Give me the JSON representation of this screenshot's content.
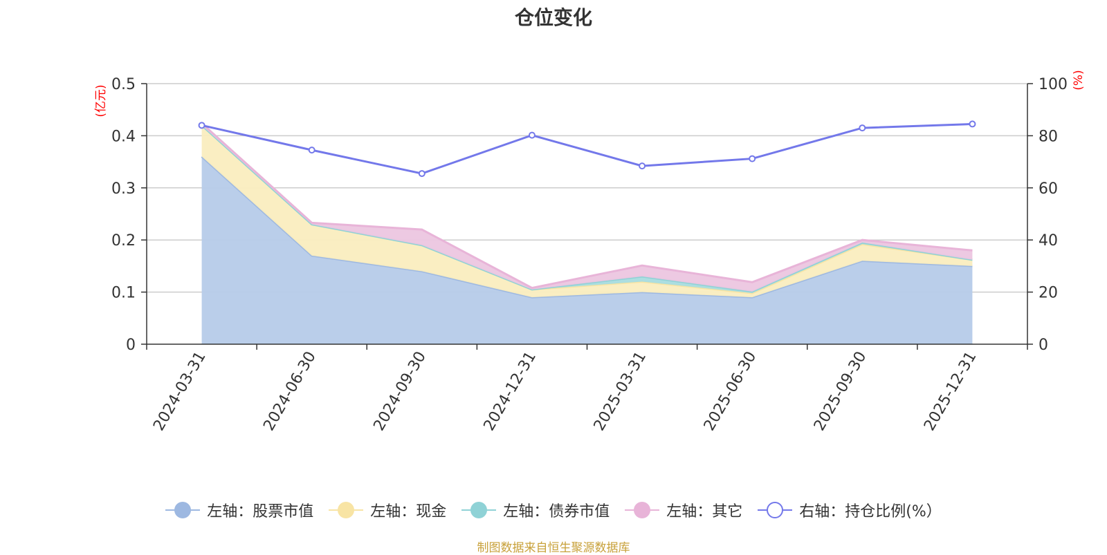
{
  "title": "仓位变化",
  "source_note": "制图数据来自恒生聚源数据库",
  "chart_data": {
    "type": "area",
    "title": "仓位变化",
    "categories": [
      "2024-03-31",
      "2024-06-30",
      "2024-09-30",
      "2024-12-31",
      "2025-03-31",
      "2025-06-30",
      "2025-09-30",
      "2025-12-31"
    ],
    "left_axis": {
      "unit": "(亿元)",
      "ylim": [
        0,
        0.5
      ],
      "ticks": [
        "0",
        "0.1",
        "0.2",
        "0.3",
        "0.4",
        "0.5"
      ]
    },
    "right_axis": {
      "unit": "(%)",
      "ylim": [
        0,
        100
      ],
      "ticks": [
        "0",
        "20",
        "40",
        "60",
        "80",
        "100"
      ]
    },
    "stacked_series": [
      {
        "name": "左轴：股票市值",
        "color": "#9db8e1",
        "fill": "#b6cbe9",
        "values": [
          0.36,
          0.17,
          0.14,
          0.09,
          0.1,
          0.09,
          0.16,
          0.15
        ]
      },
      {
        "name": "左轴：现金",
        "color": "#f8e4a4",
        "fill": "#faedbf",
        "values": [
          0.06,
          0.06,
          0.05,
          0.015,
          0.02,
          0.008,
          0.032,
          0.012
        ]
      },
      {
        "name": "左轴：债券市值",
        "color": "#8fd2d6",
        "fill": "#a8dcdf",
        "values": [
          0,
          0,
          0,
          0,
          0.01,
          0.003,
          0.003,
          0
        ]
      },
      {
        "name": "左轴：其它",
        "color": "#e8b4d8",
        "fill": "#ecc6e0",
        "values": [
          0.004,
          0.003,
          0.03,
          0.003,
          0.021,
          0.018,
          0.005,
          0.018
        ]
      }
    ],
    "line_series": {
      "name": "右轴：持仓比例(%）",
      "color": "#7378ea",
      "values": [
        84,
        74.5,
        65.5,
        80.2,
        68.4,
        71.2,
        83,
        84.5
      ]
    },
    "grid": true,
    "legend_position": "bottom"
  }
}
